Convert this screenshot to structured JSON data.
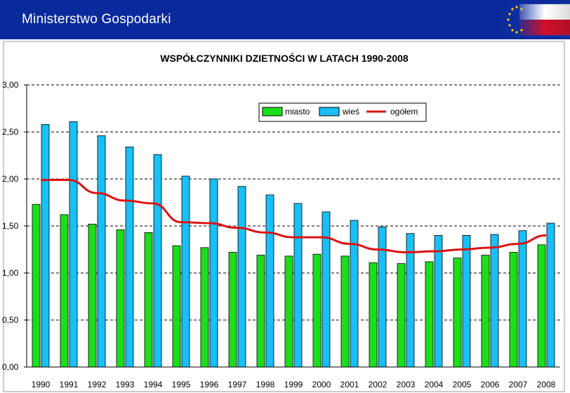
{
  "header": {
    "title": "Ministerstwo Gospodarki"
  },
  "colors": {
    "header_bg": "#0a2a9c",
    "miasto": "#1adf1a",
    "wies": "#19bff5",
    "ogolem": "#dd1111",
    "gridline": "#000000"
  },
  "chart_data": {
    "type": "bar",
    "title": "WSPÓŁCZYNNIKI DZIETNOŚCI W LATACH 1990-2008",
    "xlabel": "",
    "ylabel": "",
    "ylim": [
      0,
      3
    ],
    "yticks": [
      "0,00",
      "0,50",
      "1,00",
      "1,50",
      "2,00",
      "2,50",
      "3,00"
    ],
    "categories": [
      "1990",
      "1991",
      "1992",
      "1993",
      "1994",
      "1995",
      "1996",
      "1997",
      "1998",
      "1999",
      "2000",
      "2001",
      "2002",
      "2003",
      "2004",
      "2005",
      "2006",
      "2007",
      "2008"
    ],
    "series": [
      {
        "name": "miasto",
        "kind": "bar",
        "color": "#1adf1a",
        "values": [
          1.73,
          1.62,
          1.52,
          1.46,
          1.43,
          1.29,
          1.27,
          1.22,
          1.19,
          1.18,
          1.2,
          1.18,
          1.11,
          1.1,
          1.12,
          1.16,
          1.19,
          1.22,
          1.3
        ]
      },
      {
        "name": "wieś",
        "kind": "bar",
        "color": "#19bff5",
        "values": [
          2.58,
          2.61,
          2.46,
          2.34,
          2.26,
          2.03,
          2.0,
          1.92,
          1.83,
          1.74,
          1.65,
          1.56,
          1.49,
          1.42,
          1.4,
          1.4,
          1.41,
          1.45,
          1.53
        ]
      },
      {
        "name": "ogółem",
        "kind": "line",
        "color": "#dd1111",
        "values": [
          1.99,
          1.99,
          1.85,
          1.77,
          1.74,
          1.54,
          1.53,
          1.48,
          1.43,
          1.38,
          1.38,
          1.31,
          1.25,
          1.22,
          1.23,
          1.25,
          1.27,
          1.31,
          1.4
        ]
      }
    ],
    "legend": [
      "miasto",
      "wieś",
      "ogółem"
    ],
    "legend_position": "top-right",
    "grid": true
  }
}
